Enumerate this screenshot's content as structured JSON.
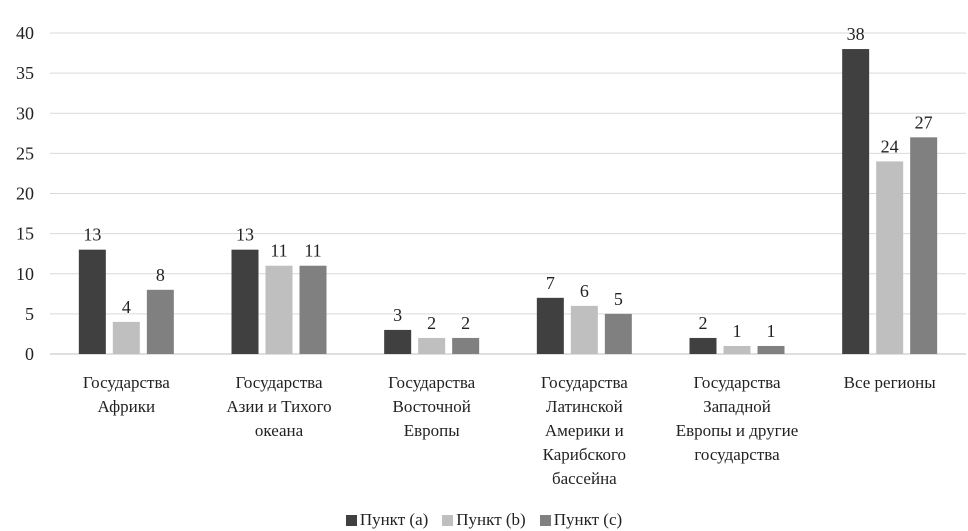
{
  "chart_data": {
    "type": "bar",
    "categories": [
      [
        "Государства",
        "Африки"
      ],
      [
        "Государства",
        "Азии и Тихого",
        "океана"
      ],
      [
        "Государства",
        "Восточной",
        "Европы"
      ],
      [
        "Государства",
        "Латинской",
        "Америки и",
        "Карибского",
        "бассейна"
      ],
      [
        "Государства",
        "Западной",
        "Европы и другие",
        "государства"
      ],
      [
        "Все регионы"
      ]
    ],
    "series": [
      {
        "name": "Пункт (a)",
        "values": [
          13,
          13,
          3,
          7,
          2,
          38
        ],
        "color": "#404040"
      },
      {
        "name": "Пункт (b)",
        "values": [
          4,
          11,
          2,
          6,
          1,
          24
        ],
        "color": "#bfbfbf"
      },
      {
        "name": "Пункт (c)",
        "values": [
          8,
          11,
          2,
          5,
          1,
          27
        ],
        "color": "#808080"
      }
    ],
    "ylim": [
      0,
      40
    ],
    "yticks": [
      0,
      5,
      10,
      15,
      20,
      25,
      30,
      35,
      40
    ],
    "grid": true,
    "legend_position": "bottom"
  }
}
